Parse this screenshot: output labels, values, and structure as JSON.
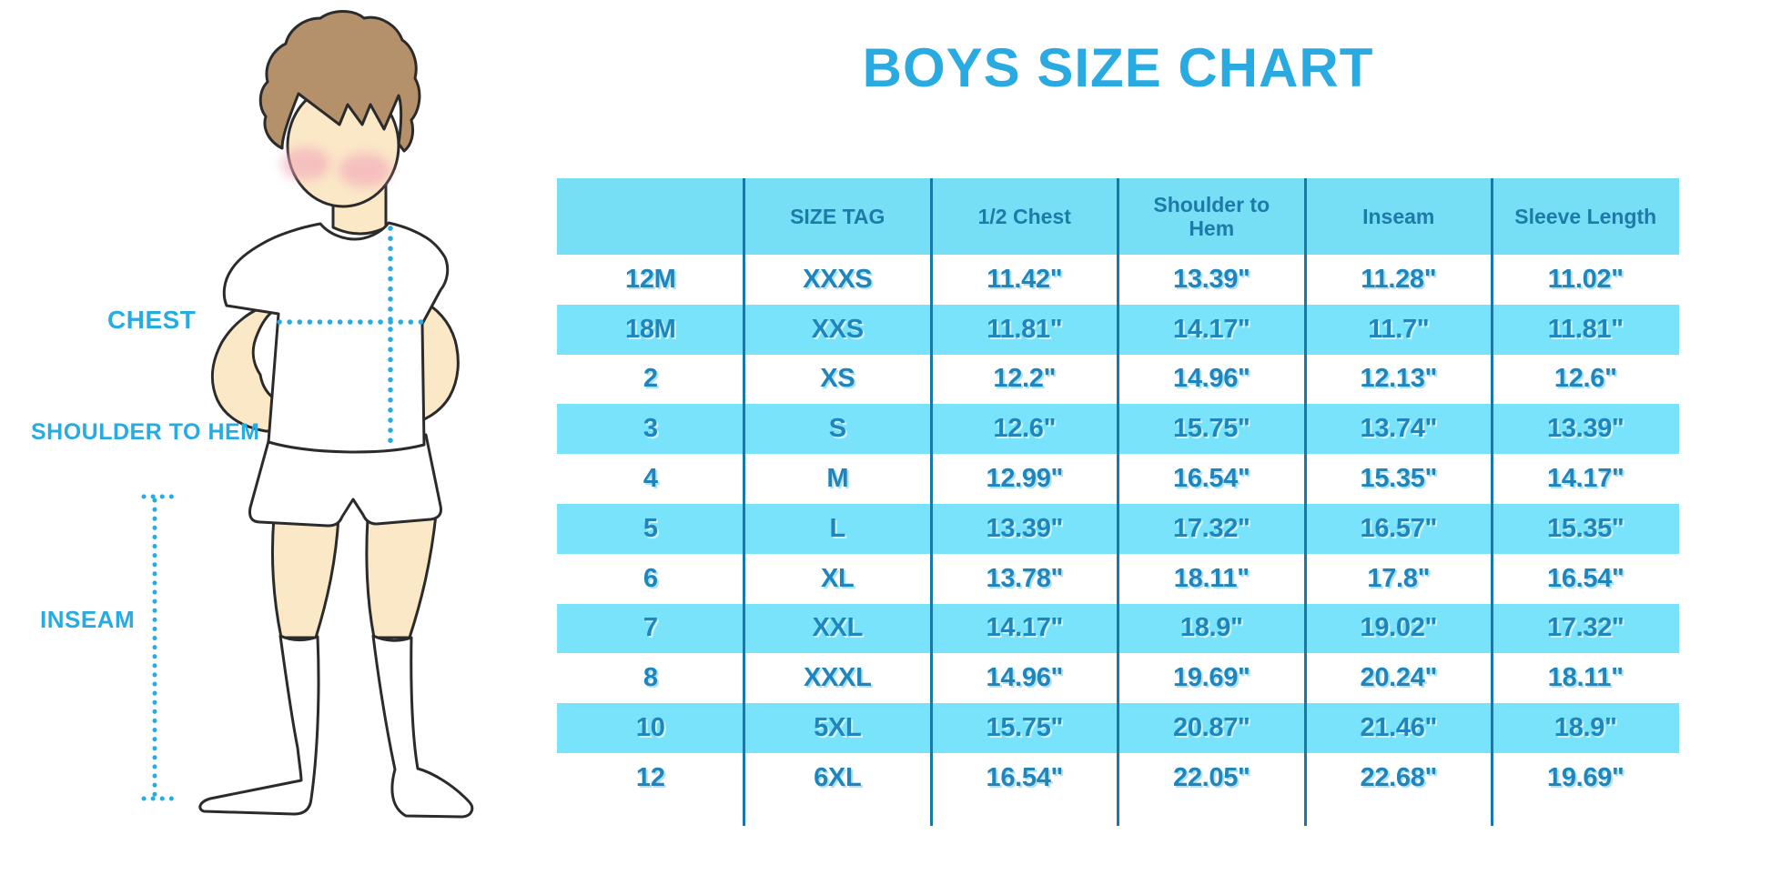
{
  "title": "BOYS SIZE CHART",
  "figure": {
    "name": "boy body measurement illustration",
    "labels": {
      "chest": "CHEST",
      "shoulder_to_hem": "SHOULDER TO HEM",
      "inseam": "INSEAM"
    }
  },
  "chart_data": {
    "type": "table",
    "title": "BOYS SIZE CHART",
    "columns": [
      "",
      "SIZE TAG",
      "1/2 Chest",
      "Shoulder to\nHem",
      "Inseam",
      "Sleeve Length"
    ],
    "rows": [
      [
        "12M",
        "XXXS",
        "11.42\"",
        "13.39\"",
        "11.28\"",
        "11.02\""
      ],
      [
        "18M",
        "XXS",
        "11.81\"",
        "14.17\"",
        "11.7\"",
        "11.81\""
      ],
      [
        "2",
        "XS",
        "12.2\"",
        "14.96\"",
        "12.13\"",
        "12.6\""
      ],
      [
        "3",
        "S",
        "12.6\"",
        "15.75\"",
        "13.74\"",
        "13.39\""
      ],
      [
        "4",
        "M",
        "12.99\"",
        "16.54\"",
        "15.35\"",
        "14.17\""
      ],
      [
        "5",
        "L",
        "13.39\"",
        "17.32\"",
        "16.57\"",
        "15.35\""
      ],
      [
        "6",
        "XL",
        "13.78\"",
        "18.11\"",
        "17.8\"",
        "16.54\""
      ],
      [
        "7",
        "XXL",
        "14.17\"",
        "18.9\"",
        "19.02\"",
        "17.32\""
      ],
      [
        "8",
        "XXXL",
        "14.96\"",
        "19.69\"",
        "20.24\"",
        "18.11\""
      ],
      [
        "10",
        "5XL",
        "15.75\"",
        "20.87\"",
        "21.46\"",
        "18.9\""
      ],
      [
        "12",
        "6XL",
        "16.54\"",
        "22.05\"",
        "22.68\"",
        "19.69\""
      ]
    ],
    "banded_row_indices": [
      1,
      3,
      5,
      7,
      9
    ],
    "legend_position": "none",
    "grid": "vertical-dividers-only"
  },
  "colors": {
    "accent": "#29ABE2",
    "header_bg": "#76DFF6",
    "band_bg": "#78E3FA",
    "header_text": "#1D7BA7",
    "cell_text": "#1F85BC",
    "divider": "#1878A8",
    "skin": "#FBE8C7",
    "hair": "#B5916B",
    "blush": "#F2A5BA",
    "outline": "#2B2B2B"
  }
}
